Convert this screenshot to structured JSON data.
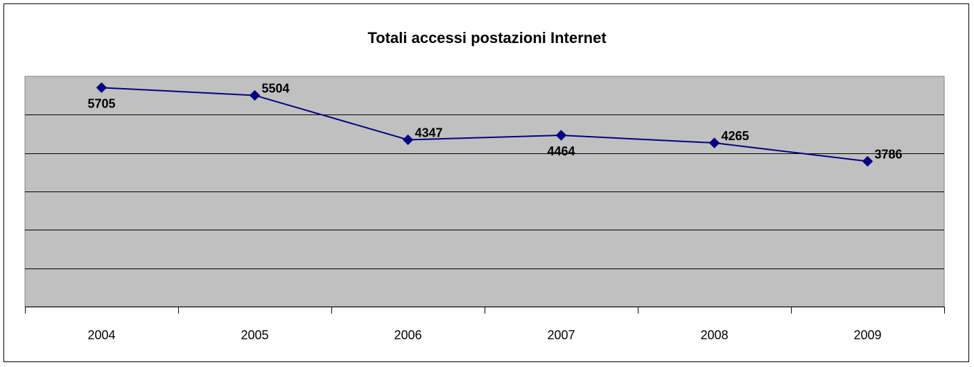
{
  "chart_data": {
    "type": "line",
    "title": "Totali accessi postazioni Internet",
    "categories": [
      "2004",
      "2005",
      "2006",
      "2007",
      "2008",
      "2009"
    ],
    "series": [
      {
        "values": [
          5705,
          5504,
          4347,
          4464,
          4265,
          3786
        ]
      }
    ],
    "ylim": [
      0,
      6000
    ],
    "y_gridlines": [
      1000,
      2000,
      3000,
      4000,
      5000
    ],
    "y_axis_labels_shown": false,
    "grid": true,
    "legend": "none",
    "colors": {
      "line": "#000080",
      "marker": "#000080",
      "plot_background": "#c0c0c0",
      "gridline": "#000000"
    },
    "data_label_placement": [
      "below",
      "right",
      "right",
      "below",
      "right",
      "right"
    ]
  }
}
